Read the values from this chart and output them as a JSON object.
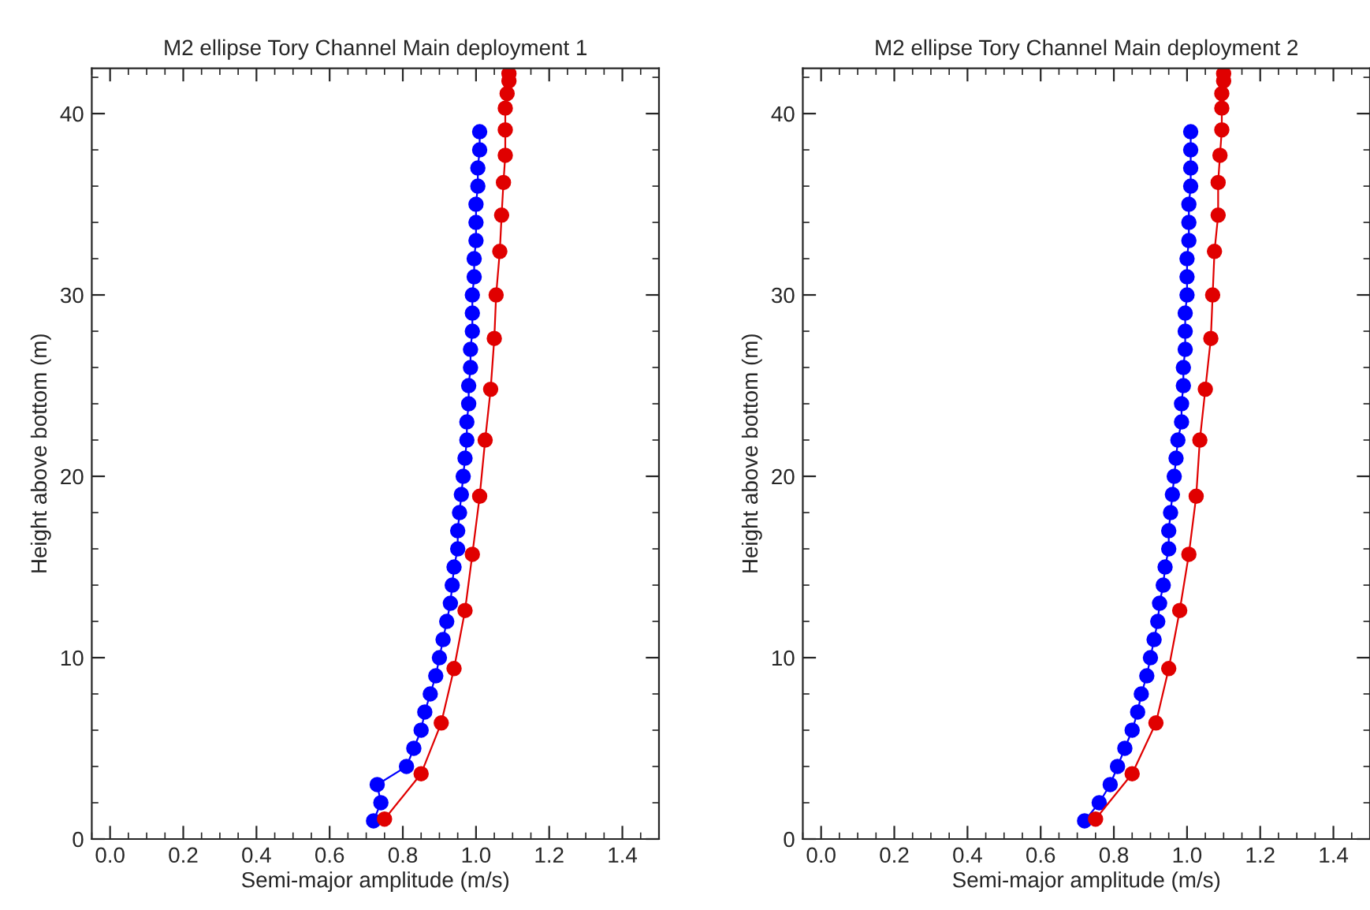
{
  "chart_data": [
    {
      "type": "line",
      "title": "M2 ellipse Tory Channel Main deployment 1",
      "xlabel": "Semi-major amplitude (m/s)",
      "ylabel": "Height above bottom (m)",
      "xlim": [
        -0.05,
        1.5
      ],
      "ylim": [
        0,
        42.5
      ],
      "xticks": [
        {
          "value": 0,
          "label": "0.0"
        },
        {
          "value": 0.2,
          "label": "0.2"
        },
        {
          "value": 0.4,
          "label": "0.4"
        },
        {
          "value": 0.6,
          "label": "0.6"
        },
        {
          "value": 0.8,
          "label": "0.8"
        },
        {
          "value": 1,
          "label": "1.0"
        },
        {
          "value": 1.2,
          "label": "1.2"
        },
        {
          "value": 1.4,
          "label": "1.4"
        }
      ],
      "yticks": [
        0,
        10,
        20,
        30,
        40
      ],
      "marker": "circle",
      "grid": false,
      "legend": false,
      "series": [
        {
          "color": "#0000ff",
          "x": [
            0.72,
            0.74,
            0.73,
            0.81,
            0.83,
            0.85,
            0.86,
            0.875,
            0.89,
            0.9,
            0.91,
            0.92,
            0.93,
            0.935,
            0.94,
            0.95,
            0.95,
            0.955,
            0.96,
            0.965,
            0.97,
            0.975,
            0.975,
            0.98,
            0.98,
            0.985,
            0.985,
            0.99,
            0.99,
            0.99,
            0.995,
            0.995,
            1.0,
            1.0,
            1.0,
            1.005,
            1.005,
            1.01,
            1.01
          ],
          "values": [
            1,
            2,
            3,
            4,
            5,
            6,
            7,
            8,
            9,
            10,
            11,
            12,
            13,
            14,
            15,
            16,
            17,
            18,
            19,
            20,
            21,
            22,
            23,
            24,
            25,
            26,
            27,
            28,
            29,
            30,
            31,
            32,
            33,
            34,
            35,
            36,
            37,
            38,
            39
          ]
        },
        {
          "color": "#e00000",
          "x": [
            0.75,
            0.85,
            0.905,
            0.94,
            0.97,
            0.99,
            1.01,
            1.025,
            1.04,
            1.05,
            1.055,
            1.065,
            1.07,
            1.075,
            1.08,
            1.08,
            1.08,
            1.085,
            1.09,
            1.09
          ],
          "values": [
            1.1,
            3.6,
            6.4,
            9.4,
            12.6,
            15.7,
            18.9,
            22.0,
            24.8,
            27.6,
            30.0,
            32.4,
            34.4,
            36.2,
            37.7,
            39.1,
            40.3,
            41.1,
            41.8,
            42.2
          ]
        }
      ]
    },
    {
      "type": "line",
      "title": "M2 ellipse Tory Channel Main deployment 2",
      "xlabel": "Semi-major amplitude (m/s)",
      "ylabel": "Height above bottom (m)",
      "xlim": [
        -0.05,
        1.5
      ],
      "ylim": [
        0,
        42.5
      ],
      "xticks": [
        {
          "value": 0,
          "label": "0.0"
        },
        {
          "value": 0.2,
          "label": "0.2"
        },
        {
          "value": 0.4,
          "label": "0.4"
        },
        {
          "value": 0.6,
          "label": "0.6"
        },
        {
          "value": 0.8,
          "label": "0.8"
        },
        {
          "value": 1,
          "label": "1.0"
        },
        {
          "value": 1.2,
          "label": "1.2"
        },
        {
          "value": 1.4,
          "label": "1.4"
        }
      ],
      "yticks": [
        0,
        10,
        20,
        30,
        40
      ],
      "marker": "circle",
      "grid": false,
      "legend": false,
      "series": [
        {
          "color": "#0000ff",
          "x": [
            0.72,
            0.76,
            0.79,
            0.81,
            0.83,
            0.85,
            0.865,
            0.875,
            0.89,
            0.9,
            0.91,
            0.92,
            0.925,
            0.935,
            0.94,
            0.95,
            0.95,
            0.955,
            0.96,
            0.965,
            0.97,
            0.975,
            0.985,
            0.985,
            0.99,
            0.99,
            0.995,
            0.995,
            0.995,
            1.0,
            1.0,
            1.0,
            1.005,
            1.005,
            1.005,
            1.01,
            1.01,
            1.01,
            1.01
          ],
          "values": [
            1,
            2,
            3,
            4,
            5,
            6,
            7,
            8,
            9,
            10,
            11,
            12,
            13,
            14,
            15,
            16,
            17,
            18,
            19,
            20,
            21,
            22,
            23,
            24,
            25,
            26,
            27,
            28,
            29,
            30,
            31,
            32,
            33,
            34,
            35,
            36,
            37,
            38,
            39
          ]
        },
        {
          "color": "#e00000",
          "x": [
            0.75,
            0.85,
            0.915,
            0.95,
            0.98,
            1.005,
            1.025,
            1.035,
            1.05,
            1.065,
            1.07,
            1.075,
            1.085,
            1.085,
            1.09,
            1.095,
            1.095,
            1.095,
            1.1,
            1.1
          ],
          "values": [
            1.1,
            3.6,
            6.4,
            9.4,
            12.6,
            15.7,
            18.9,
            22.0,
            24.8,
            27.6,
            30.0,
            32.4,
            34.4,
            36.2,
            37.7,
            39.1,
            40.3,
            41.1,
            41.8,
            42.2
          ]
        }
      ]
    }
  ]
}
